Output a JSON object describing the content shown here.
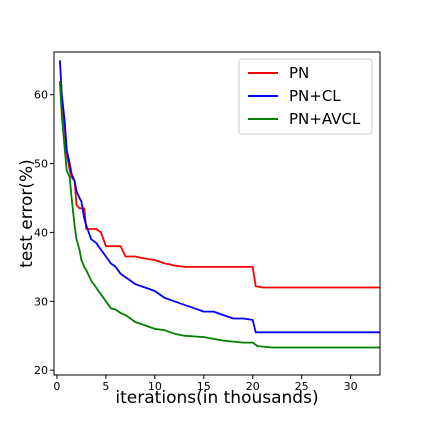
{
  "chart_data": {
    "type": "line",
    "title": "",
    "xlabel": "iterations(in thousands)",
    "ylabel": "test error(%)",
    "xlim": [
      -0.3,
      33
    ],
    "ylim": [
      19.3,
      66.2
    ],
    "x_ticks": [
      0,
      5,
      10,
      15,
      20,
      25,
      30
    ],
    "y_ticks": [
      20,
      30,
      40,
      50,
      60
    ],
    "grid": false,
    "legend_position": "top-right",
    "series": [
      {
        "name": "PN",
        "color": "#ff0000",
        "x": [
          0.3,
          0.5,
          0.8,
          1.0,
          1.3,
          1.5,
          1.8,
          2.0,
          2.3,
          2.5,
          2.8,
          3.0,
          3.5,
          4.0,
          4.5,
          5.0,
          5.5,
          6.0,
          6.5,
          7.0,
          8.0,
          9.0,
          10.0,
          11.0,
          12.0,
          13.0,
          15.0,
          17.0,
          19.0,
          20.0,
          20.3,
          21.0,
          33.0
        ],
        "y": [
          62,
          58,
          55,
          51.5,
          49,
          48,
          47.5,
          44,
          43.5,
          43.5,
          43.5,
          40.5,
          40.5,
          40.5,
          40,
          38,
          38,
          38,
          38,
          36.5,
          36.5,
          36.2,
          36,
          35.5,
          35.2,
          35,
          35,
          35,
          35,
          35,
          32.2,
          32,
          32
        ]
      },
      {
        "name": "PN+CL",
        "color": "#0000ff",
        "x": [
          0.3,
          0.5,
          0.8,
          1.0,
          1.3,
          1.5,
          1.8,
          2.0,
          2.3,
          2.5,
          2.8,
          3.0,
          3.5,
          4.0,
          4.5,
          5.0,
          5.5,
          6.0,
          6.5,
          7.0,
          7.5,
          8.0,
          9.0,
          10.0,
          11.0,
          12.0,
          13.0,
          14.0,
          15.0,
          16.0,
          17.0,
          18.0,
          19.0,
          20.0,
          20.3,
          21.0,
          33.0
        ],
        "y": [
          65,
          60,
          56,
          52,
          50,
          48.5,
          47.5,
          46,
          45,
          44.5,
          42,
          41,
          39,
          38.5,
          37.5,
          36.5,
          35.5,
          35,
          34,
          33.5,
          33,
          32.5,
          32,
          31.5,
          30.5,
          30,
          29.5,
          29,
          28.5,
          28.5,
          28,
          27.5,
          27.5,
          27.3,
          25.5,
          25.5,
          25.5
        ]
      },
      {
        "name": "PN+AVCL",
        "color": "#008000",
        "x": [
          0.3,
          0.5,
          0.8,
          1.0,
          1.3,
          1.5,
          1.8,
          2.0,
          2.3,
          2.5,
          2.8,
          3.0,
          3.5,
          4.0,
          4.5,
          5.0,
          5.5,
          6.0,
          6.5,
          7.0,
          7.5,
          8.0,
          9.0,
          10.0,
          11.0,
          12.0,
          13.0,
          15.0,
          17.0,
          19.0,
          20.0,
          20.5,
          22.0,
          33.0
        ],
        "y": [
          62,
          57,
          52,
          49,
          48,
          45,
          41,
          39,
          37.5,
          36,
          35,
          34.5,
          33,
          32,
          31,
          30,
          29,
          28.8,
          28.3,
          28,
          27.5,
          27,
          26.5,
          26,
          25.8,
          25.3,
          25,
          24.8,
          24.3,
          24,
          24,
          23.5,
          23.3,
          23.3
        ]
      }
    ]
  }
}
